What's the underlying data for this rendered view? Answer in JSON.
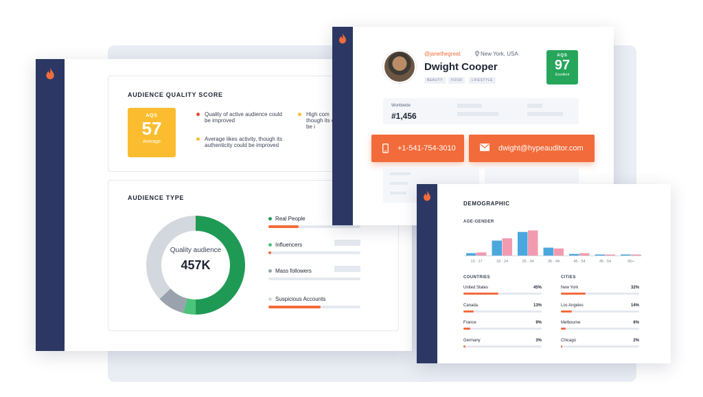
{
  "colors": {
    "rail": "#2c3863",
    "accent": "#f26b3a",
    "aqs_average": "#fbbd2f",
    "aqs_excellent": "#26a65b",
    "real_people": "#1f9a55",
    "influencers": "#4bc37a",
    "mass_followers": "#9aa3ad",
    "suspicious": "#d3d8de",
    "male": "#4aa8df",
    "female": "#f29bb0"
  },
  "quality_panel": {
    "title": "AUDIENCE QUALITY SCORE",
    "aqs_label": "AQS",
    "aqs_value": "57",
    "aqs_status": "Average",
    "notes": [
      {
        "text": "Quality of active audience could be improved",
        "color": "#e54b3c"
      },
      {
        "text": "Average likes activity, though its authenticity could be improved",
        "color": "#fbbd2f"
      },
      {
        "text": "High com though its could be i",
        "color": "#fbbd2f"
      }
    ]
  },
  "audience_type": {
    "title": "AUDIENCE TYPE",
    "center_label": "Quality audience",
    "center_value": "457K",
    "legend": [
      {
        "label": "Real People",
        "color": "#1f9a55",
        "fill": 0.33
      },
      {
        "label": "Influencers",
        "color": "#4bc37a",
        "fill": 0.03
      },
      {
        "label": "Mass followers",
        "color": "#9aa3ad",
        "fill": 0.0
      },
      {
        "label": "Suspicious Accounts",
        "color": "#d3d8de",
        "fill": 0.57
      }
    ],
    "donut": [
      {
        "name": "Real People",
        "value": 50,
        "color": "#1f9a55"
      },
      {
        "name": "Influencers",
        "value": 4,
        "color": "#4bc37a"
      },
      {
        "name": "Mass followers",
        "value": 9,
        "color": "#9aa3ad"
      },
      {
        "name": "Suspicious Accounts",
        "value": 37,
        "color": "#d3d8de"
      }
    ]
  },
  "profile": {
    "handle": "@janethegreat",
    "location": "New York, USA",
    "name": "Dwight Cooper",
    "tags": [
      "BEAUTY",
      "FOOD",
      "LIFESTYLE"
    ],
    "aqs_label": "AQS",
    "aqs_value": "97",
    "aqs_status": "Excellent",
    "rank_label": "Worldwide",
    "rank_value": "#1,456",
    "phone": "+1-541-754-3010",
    "email": "dwight@hypeauditor.com"
  },
  "demographic": {
    "title": "DEMOGRAPHIC",
    "age_gender_title": "AGE-GENDER",
    "countries_title": "COUNTRIES",
    "cities_title": "CITIES",
    "countries": [
      {
        "name": "United States",
        "pct": "45%",
        "value": 0.45
      },
      {
        "name": "Canada",
        "pct": "13%",
        "value": 0.13
      },
      {
        "name": "France",
        "pct": "9%",
        "value": 0.09
      },
      {
        "name": "Germany",
        "pct": "3%",
        "value": 0.03
      }
    ],
    "cities": [
      {
        "name": "New York",
        "pct": "32%",
        "value": 0.32
      },
      {
        "name": "Los Angeles",
        "pct": "14%",
        "value": 0.14
      },
      {
        "name": "Melbourne",
        "pct": "6%",
        "value": 0.06
      },
      {
        "name": "Chicago",
        "pct": "2%",
        "value": 0.02
      }
    ]
  },
  "chart_data": {
    "type": "bar",
    "categories": [
      "13 - 17",
      "18 - 24",
      "25 - 34",
      "35 - 44",
      "45 - 54",
      "45 - 54",
      "65+"
    ],
    "series": [
      {
        "values": [
          3,
          19,
          30,
          10,
          2,
          1,
          1
        ]
      },
      {
        "values": [
          4,
          22,
          32,
          9,
          3,
          1,
          1
        ]
      }
    ],
    "ylim": [
      0,
      35
    ],
    "grid": false,
    "legend": "none"
  }
}
